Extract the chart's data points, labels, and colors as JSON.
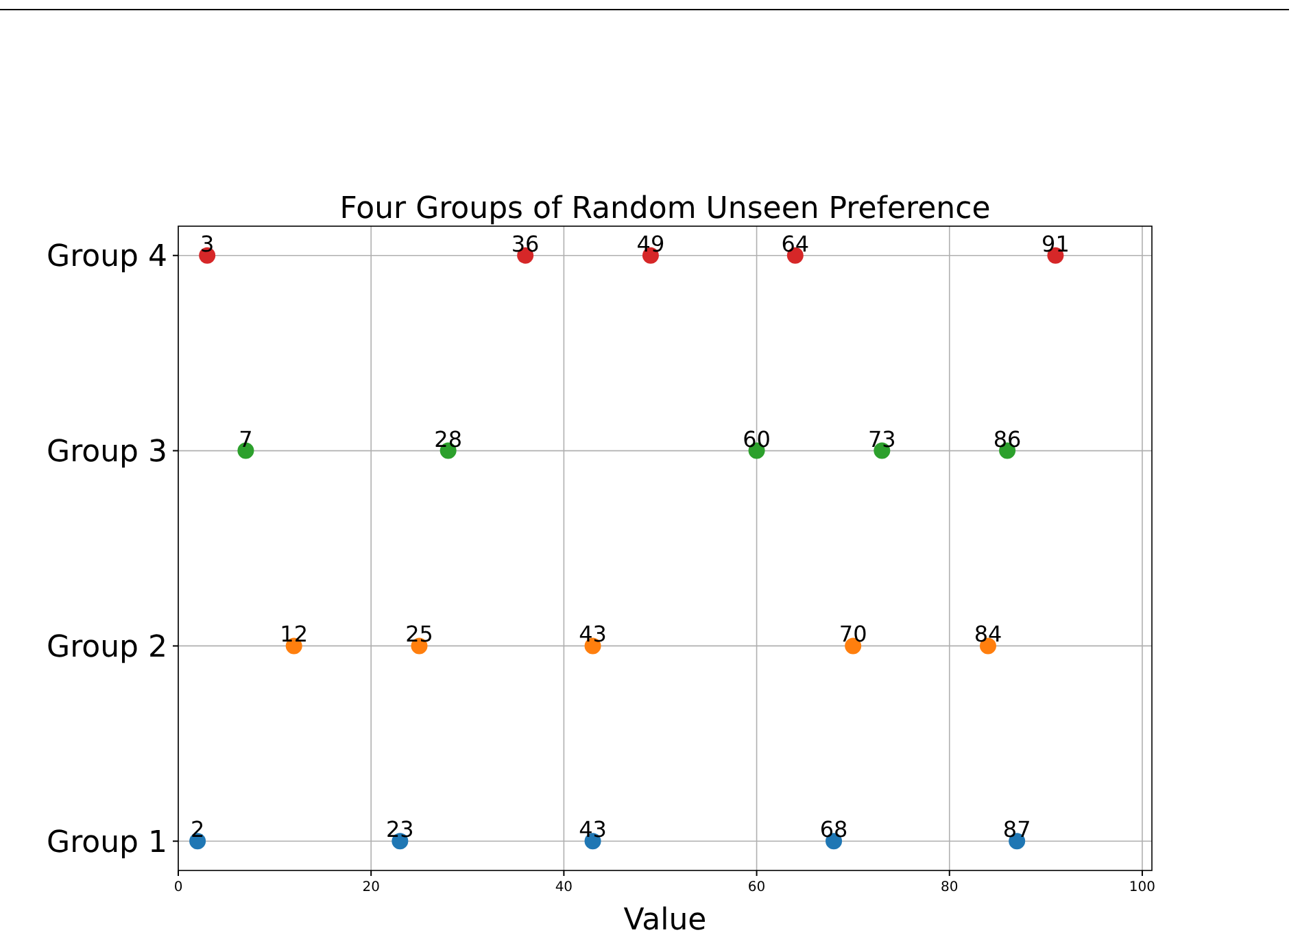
{
  "chart_data": {
    "type": "scatter",
    "orientation": "horizontal",
    "title": "Four Groups of Random Unseen Preference",
    "xlabel": "Value",
    "categories": [
      "Group 4",
      "Group 3",
      "Group 2",
      "Group 1"
    ],
    "xlim": [
      0,
      101
    ],
    "xticks": [
      0,
      20,
      40,
      60,
      80,
      100
    ],
    "grid": true,
    "marker": "circle",
    "data_labels": true,
    "series": [
      {
        "color": "#1f77b4",
        "x": [
          "Group 1",
          "Group 1",
          "Group 1",
          "Group 1",
          "Group 1"
        ],
        "values": [
          2,
          23,
          43,
          68,
          87
        ]
      },
      {
        "color": "#ff7f0e",
        "x": [
          "Group 2",
          "Group 2",
          "Group 2",
          "Group 2",
          "Group 2"
        ],
        "values": [
          12,
          25,
          43,
          70,
          84
        ]
      },
      {
        "color": "#2ca02c",
        "x": [
          "Group 3",
          "Group 3",
          "Group 3",
          "Group 3",
          "Group 3"
        ],
        "values": [
          7,
          28,
          60,
          73,
          86
        ]
      },
      {
        "color": "#d62728",
        "x": [
          "Group 4",
          "Group 4",
          "Group 4",
          "Group 4",
          "Group 4"
        ],
        "values": [
          3,
          36,
          49,
          64,
          91
        ]
      }
    ]
  }
}
